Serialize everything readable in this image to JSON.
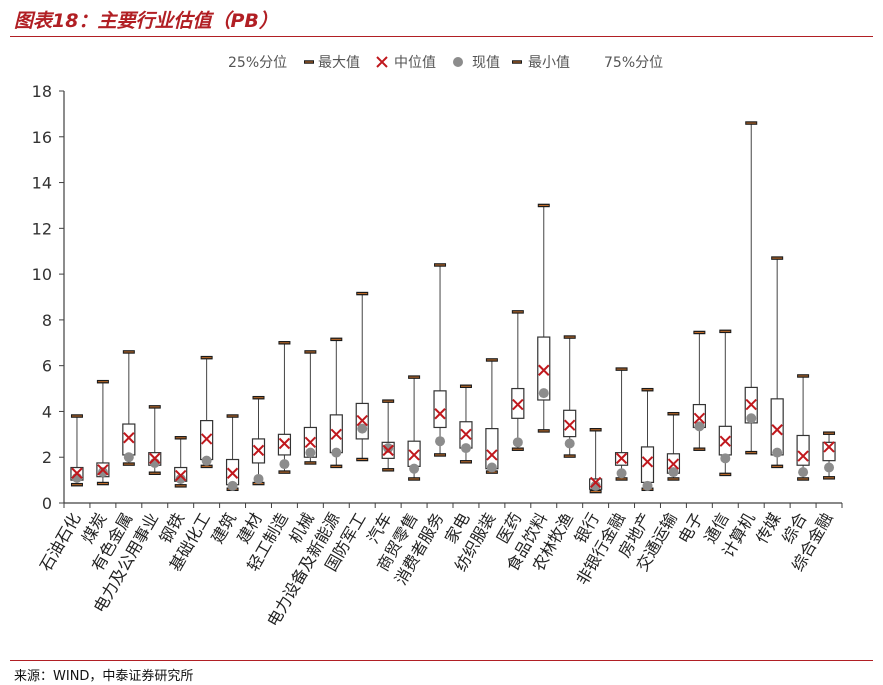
{
  "figure": {
    "title": "图表18：主要行业估值（PB）",
    "source": "来源：WIND，中泰证券研究所"
  },
  "colors": {
    "title_red": "#b11f24",
    "median_marker": "#c0181d",
    "current_marker": "#8c8c8c",
    "box_stroke": "#333333",
    "axis": "#404040",
    "max_min_tick": "#1a1a1a",
    "max_min_tick_inner": "#c8702a"
  },
  "chart_data": {
    "type": "boxplot",
    "title": "",
    "xlabel": "",
    "ylabel": "",
    "ylim": [
      0,
      18
    ],
    "yticks": [
      0,
      2,
      4,
      6,
      8,
      10,
      12,
      14,
      16,
      18
    ],
    "grid": false,
    "legend_position": "top",
    "legend": [
      {
        "label": "25%分位",
        "marker": "none"
      },
      {
        "label": "最大值",
        "marker": "dash"
      },
      {
        "label": "中位值",
        "marker": "x"
      },
      {
        "label": "现值",
        "marker": "circle"
      },
      {
        "label": "最小值",
        "marker": "dash"
      },
      {
        "label": "75%分位",
        "marker": "none"
      }
    ],
    "categories": [
      "石油石化",
      "煤炭",
      "有色金属",
      "电力及公用事业",
      "钢铁",
      "基础化工",
      "建筑",
      "建材",
      "轻工制造",
      "机械",
      "电力设备及新能源",
      "国防军工",
      "汽车",
      "商贸零售",
      "消费者服务",
      "家电",
      "纺织服装",
      "医药",
      "食品饮料",
      "农林牧渔",
      "银行",
      "非银行金融",
      "房地产",
      "交通运输",
      "电子",
      "通信",
      "计算机",
      "传媒",
      "综合",
      "综合金融"
    ],
    "series": [
      {
        "name": "最小值",
        "values": [
          0.8,
          0.85,
          1.7,
          1.3,
          0.75,
          1.6,
          0.6,
          0.85,
          1.35,
          1.75,
          1.6,
          1.9,
          1.45,
          1.05,
          2.1,
          1.8,
          1.35,
          2.35,
          3.15,
          2.05,
          0.5,
          1.05,
          0.6,
          1.05,
          2.35,
          1.25,
          2.2,
          1.6,
          1.05,
          1.1
        ]
      },
      {
        "name": "25%分位",
        "values": [
          1.0,
          1.15,
          2.1,
          1.65,
          0.95,
          1.9,
          0.8,
          1.75,
          2.1,
          2.0,
          2.2,
          2.8,
          1.95,
          1.6,
          3.3,
          2.4,
          1.5,
          3.7,
          4.5,
          2.9,
          0.6,
          1.65,
          0.9,
          1.3,
          3.3,
          2.1,
          3.5,
          2.1,
          1.65,
          1.85
        ]
      },
      {
        "name": "中位值",
        "values": [
          1.3,
          1.45,
          2.85,
          1.95,
          1.2,
          2.8,
          1.3,
          2.3,
          2.6,
          2.65,
          3.0,
          3.6,
          2.3,
          2.1,
          3.9,
          3.0,
          2.1,
          4.3,
          5.8,
          3.4,
          0.9,
          1.95,
          1.8,
          1.7,
          3.7,
          2.7,
          4.3,
          3.2,
          2.05,
          2.45
        ]
      },
      {
        "name": "75%分位",
        "values": [
          1.55,
          1.75,
          3.45,
          2.2,
          1.55,
          3.6,
          1.9,
          2.8,
          3.0,
          3.3,
          3.85,
          4.35,
          2.65,
          2.7,
          4.9,
          3.55,
          3.25,
          5.0,
          7.25,
          4.05,
          1.05,
          2.2,
          2.45,
          2.15,
          4.3,
          3.35,
          5.05,
          4.55,
          2.95,
          2.65
        ]
      },
      {
        "name": "最大值",
        "values": [
          3.8,
          5.3,
          6.6,
          4.2,
          2.85,
          6.35,
          3.8,
          4.6,
          7.0,
          6.6,
          7.15,
          9.15,
          4.45,
          5.5,
          10.4,
          5.1,
          6.25,
          8.35,
          13.0,
          7.25,
          3.2,
          5.85,
          4.95,
          3.9,
          7.45,
          7.5,
          16.6,
          10.7,
          5.55,
          3.05
        ]
      },
      {
        "name": "现值",
        "values": [
          1.1,
          1.35,
          2.0,
          1.75,
          1.05,
          1.85,
          0.75,
          1.05,
          1.7,
          2.2,
          2.2,
          3.25,
          2.4,
          1.5,
          2.7,
          2.4,
          1.55,
          2.65,
          4.8,
          2.6,
          0.75,
          1.3,
          0.75,
          1.35,
          3.35,
          1.95,
          3.7,
          2.2,
          1.35,
          1.55
        ]
      }
    ]
  }
}
